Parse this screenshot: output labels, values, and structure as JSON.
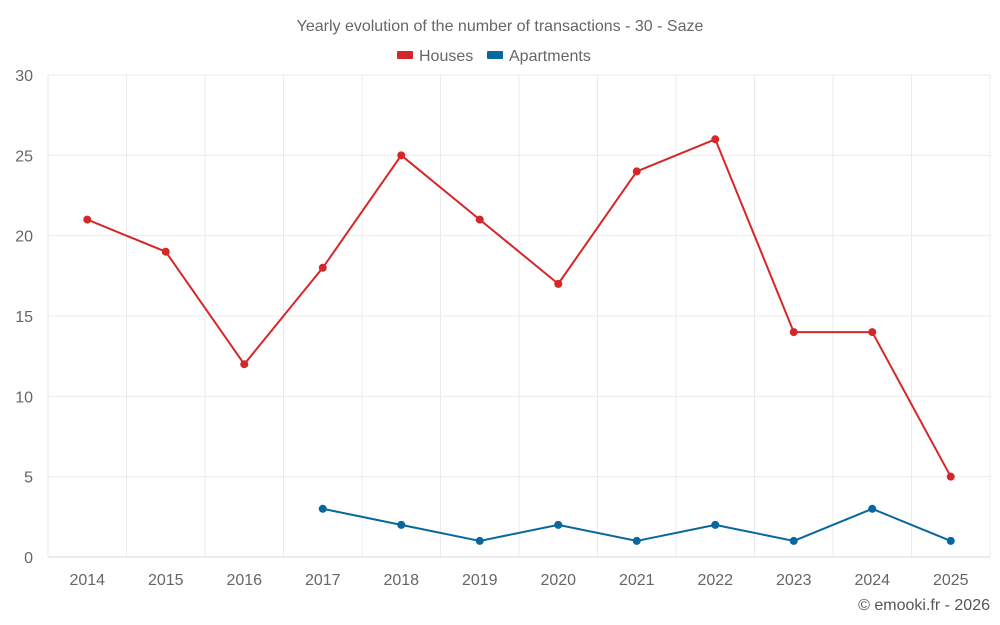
{
  "chart_data": {
    "type": "line",
    "title": "Yearly evolution of the number of transactions - 30 - Saze",
    "categories": [
      "2014",
      "2015",
      "2016",
      "2017",
      "2018",
      "2019",
      "2020",
      "2021",
      "2022",
      "2023",
      "2024",
      "2025"
    ],
    "series": [
      {
        "name": "Houses",
        "color": "#d62728",
        "values": [
          21,
          19,
          12,
          18,
          25,
          21,
          17,
          24,
          26,
          14,
          14,
          5
        ]
      },
      {
        "name": "Apartments",
        "color": "#08679c",
        "values": [
          null,
          null,
          null,
          3,
          2,
          1,
          2,
          1,
          2,
          1,
          3,
          1
        ]
      }
    ],
    "ylim": [
      0,
      30
    ],
    "yticks": [
      0,
      5,
      10,
      15,
      20,
      25,
      30
    ],
    "xlabel": "",
    "ylabel": "",
    "legend": "top-center",
    "grid": true
  },
  "credit": "© emooki.fr - 2026"
}
